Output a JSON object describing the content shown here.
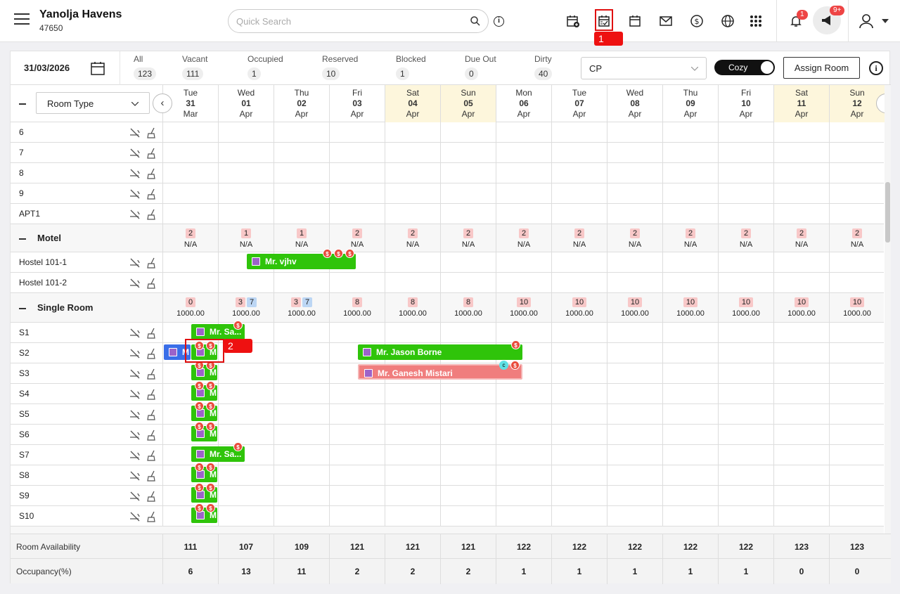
{
  "header": {
    "hotel_name": "Yanolja Havens",
    "hotel_id": "47650",
    "search_placeholder": "Quick Search",
    "notifications_count": "1",
    "announcements_count": "9+"
  },
  "annotations": {
    "tag1": "1",
    "tag2": "2"
  },
  "toolbar": {
    "date": "31/03/2026",
    "stats": [
      {
        "label": "All",
        "count": "123"
      },
      {
        "label": "Vacant",
        "count": "111"
      },
      {
        "label": "Occupied",
        "count": "1"
      },
      {
        "label": "Reserved",
        "count": "10"
      },
      {
        "label": "Blocked",
        "count": "1"
      },
      {
        "label": "Due Out",
        "count": "0"
      },
      {
        "label": "Dirty",
        "count": "40"
      }
    ],
    "plan": "CP",
    "toggle_label": "Cozy",
    "assign_label": "Assign Room",
    "roomtype_label": "Room Type"
  },
  "days": [
    {
      "dow": "Tue",
      "num": "31",
      "mon": "Mar",
      "weekend": false
    },
    {
      "dow": "Wed",
      "num": "01",
      "mon": "Apr",
      "weekend": false
    },
    {
      "dow": "Thu",
      "num": "02",
      "mon": "Apr",
      "weekend": false
    },
    {
      "dow": "Fri",
      "num": "03",
      "mon": "Apr",
      "weekend": false
    },
    {
      "dow": "Sat",
      "num": "04",
      "mon": "Apr",
      "weekend": true
    },
    {
      "dow": "Sun",
      "num": "05",
      "mon": "Apr",
      "weekend": true
    },
    {
      "dow": "Mon",
      "num": "06",
      "mon": "Apr",
      "weekend": false
    },
    {
      "dow": "Tue",
      "num": "07",
      "mon": "Apr",
      "weekend": false
    },
    {
      "dow": "Wed",
      "num": "08",
      "mon": "Apr",
      "weekend": false
    },
    {
      "dow": "Thu",
      "num": "09",
      "mon": "Apr",
      "weekend": false
    },
    {
      "dow": "Fri",
      "num": "10",
      "mon": "Apr",
      "weekend": false
    },
    {
      "dow": "Sat",
      "num": "11",
      "mon": "Apr",
      "weekend": true
    },
    {
      "dow": "Sun",
      "num": "12",
      "mon": "Apr",
      "weekend": true
    }
  ],
  "rooms_top": [
    "6",
    "7",
    "8",
    "9",
    "APT1"
  ],
  "motel": {
    "name": "Motel",
    "avail": [
      "2",
      "1",
      "1",
      "2",
      "2",
      "2",
      "2",
      "2",
      "2",
      "2",
      "2",
      "2",
      "2"
    ],
    "rate": [
      "N/A",
      "N/A",
      "N/A",
      "N/A",
      "N/A",
      "N/A",
      "N/A",
      "N/A",
      "N/A",
      "N/A",
      "N/A",
      "N/A",
      "N/A"
    ],
    "rooms": [
      "Hostel 101-1",
      "Hostel 101-2"
    ]
  },
  "single": {
    "name": "Single Room",
    "avail": [
      "0",
      "3",
      "3",
      "8",
      "8",
      "8",
      "10",
      "10",
      "10",
      "10",
      "10",
      "10",
      "10"
    ],
    "extra": [
      "",
      "7",
      "7",
      "",
      "",
      "",
      "",
      "",
      "",
      "",
      "",
      "",
      ""
    ],
    "rate": [
      "1000.00",
      "1000.00",
      "1000.00",
      "1000.00",
      "1000.00",
      "1000.00",
      "1000.00",
      "1000.00",
      "1000.00",
      "1000.00",
      "1000.00",
      "1000.00",
      "1000.00"
    ],
    "rooms": [
      "S1",
      "S2",
      "S3",
      "S4",
      "S5",
      "S6",
      "S7",
      "S8",
      "S9",
      "S10"
    ]
  },
  "bookings": {
    "vjhv": "Mr. vjhv",
    "s1": "Mr. Sa...",
    "s7": "Mr. Sa...",
    "short": "M",
    "jason": "Mr. Jason Borne",
    "ganesh": "Mr. Ganesh Mistari"
  },
  "footer": {
    "availability_label": "Room Availability",
    "availability": [
      "111",
      "107",
      "109",
      "121",
      "121",
      "121",
      "122",
      "122",
      "122",
      "122",
      "122",
      "123",
      "123"
    ],
    "occupancy_label": "Occupancy(%)",
    "occupancy": [
      "6",
      "13",
      "11",
      "2",
      "2",
      "2",
      "1",
      "1",
      "1",
      "1",
      "1",
      "0",
      "0"
    ]
  }
}
